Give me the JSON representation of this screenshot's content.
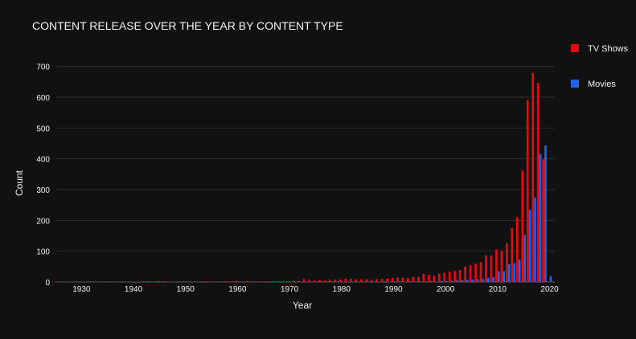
{
  "chart_data": {
    "type": "bar",
    "title": "CONTENT RELEASE OVER THE YEAR BY CONTENT TYPE",
    "xlabel": "Year",
    "ylabel": "Count",
    "xlim": [
      1925,
      2021
    ],
    "ylim": [
      0,
      720
    ],
    "xticks": [
      1930,
      1940,
      1950,
      1960,
      1970,
      1980,
      1990,
      2000,
      2010,
      2020
    ],
    "yticks": [
      0,
      100,
      200,
      300,
      400,
      500,
      600,
      700
    ],
    "grid": true,
    "legend_position": "top-right",
    "series": [
      {
        "name": "TV Shows",
        "color": "#e50914",
        "x": [
          1925,
          1942,
          1943,
          1944,
          1945,
          1946,
          1947,
          1954,
          1955,
          1956,
          1958,
          1959,
          1960,
          1962,
          1963,
          1964,
          1965,
          1966,
          1967,
          1968,
          1969,
          1970,
          1971,
          1972,
          1973,
          1974,
          1975,
          1976,
          1977,
          1978,
          1979,
          1980,
          1981,
          1982,
          1983,
          1984,
          1985,
          1986,
          1987,
          1988,
          1989,
          1990,
          1991,
          1992,
          1993,
          1994,
          1995,
          1996,
          1997,
          1998,
          1999,
          2000,
          2001,
          2002,
          2003,
          2004,
          2005,
          2006,
          2007,
          2008,
          2009,
          2010,
          2011,
          2012,
          2013,
          2014,
          2015,
          2016,
          2017,
          2018,
          2019
        ],
        "values": [
          1,
          2,
          2,
          2,
          3,
          2,
          1,
          2,
          2,
          1,
          2,
          1,
          3,
          2,
          1,
          1,
          2,
          2,
          3,
          3,
          2,
          2,
          4,
          3,
          9,
          7,
          6,
          7,
          5,
          7,
          8,
          8,
          11,
          10,
          9,
          9,
          9,
          7,
          9,
          10,
          11,
          13,
          15,
          14,
          12,
          16,
          17,
          26,
          23,
          20,
          27,
          30,
          34,
          36,
          39,
          50,
          55,
          60,
          64,
          86,
          85,
          106,
          101,
          125,
          175,
          210,
          362,
          590,
          679,
          646,
          398
        ],
        "bar_offset": -0.22
      },
      {
        "name": "Movies",
        "color": "#1f63e6",
        "x": [
          1925,
          1935,
          1946,
          1955,
          1963,
          1967,
          1972,
          1974,
          1976,
          1979,
          1981,
          1985,
          1988,
          1990,
          1993,
          1995,
          1997,
          1999,
          2000,
          2001,
          2002,
          2003,
          2004,
          2005,
          2006,
          2007,
          2008,
          2009,
          2010,
          2011,
          2012,
          2013,
          2014,
          2015,
          2016,
          2017,
          2018,
          2019,
          2020
        ],
        "values": [
          1,
          1,
          1,
          1,
          1,
          1,
          1,
          1,
          1,
          1,
          1,
          1,
          2,
          2,
          2,
          2,
          3,
          3,
          3,
          4,
          5,
          6,
          7,
          8,
          9,
          10,
          14,
          16,
          35,
          36,
          58,
          61,
          73,
          153,
          234,
          274,
          415,
          443,
          18
        ],
        "bar_offset": 0.22
      }
    ]
  }
}
